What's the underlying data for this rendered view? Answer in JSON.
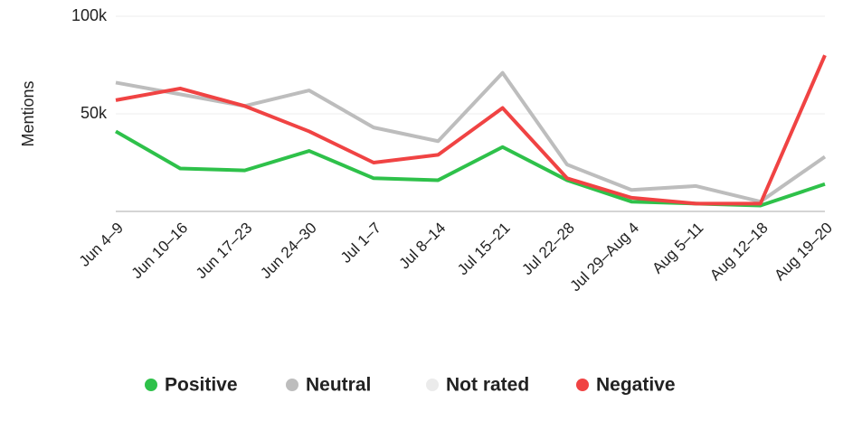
{
  "chart_data": {
    "type": "line",
    "y_label": "Mentions",
    "categories": [
      "Jun 4–9",
      "Jun 10–16",
      "Jun 17–23",
      "Jun 24–30",
      "Jul 1–7",
      "Jul 8–14",
      "Jul 15–21",
      "Jul 22–28",
      "Jul 29–Aug 4",
      "Aug 5–11",
      "Aug 12–18",
      "Aug 19–20"
    ],
    "series": [
      {
        "name": "Positive",
        "color": "#2ec14a",
        "values": [
          41000,
          22000,
          21000,
          31000,
          17000,
          16000,
          33000,
          16000,
          5000,
          4000,
          3000,
          14000
        ]
      },
      {
        "name": "Neutral",
        "color": "#bdbdbd",
        "values": [
          66000,
          60000,
          54000,
          62000,
          43000,
          36000,
          71000,
          24000,
          11000,
          13000,
          5000,
          28000
        ]
      },
      {
        "name": "Not rated",
        "color": "#ebebeb",
        "values": [
          null,
          null,
          null,
          null,
          null,
          null,
          null,
          null,
          null,
          null,
          null,
          null
        ]
      },
      {
        "name": "Negative",
        "color": "#f04343",
        "values": [
          57000,
          63000,
          54000,
          41000,
          25000,
          29000,
          53000,
          17000,
          7000,
          4000,
          4000,
          80000
        ]
      }
    ],
    "ylim": [
      0,
      100000
    ],
    "yticks": [
      {
        "value": 50000,
        "label": "50k"
      },
      {
        "value": 100000,
        "label": "100k"
      }
    ],
    "grid": true
  }
}
